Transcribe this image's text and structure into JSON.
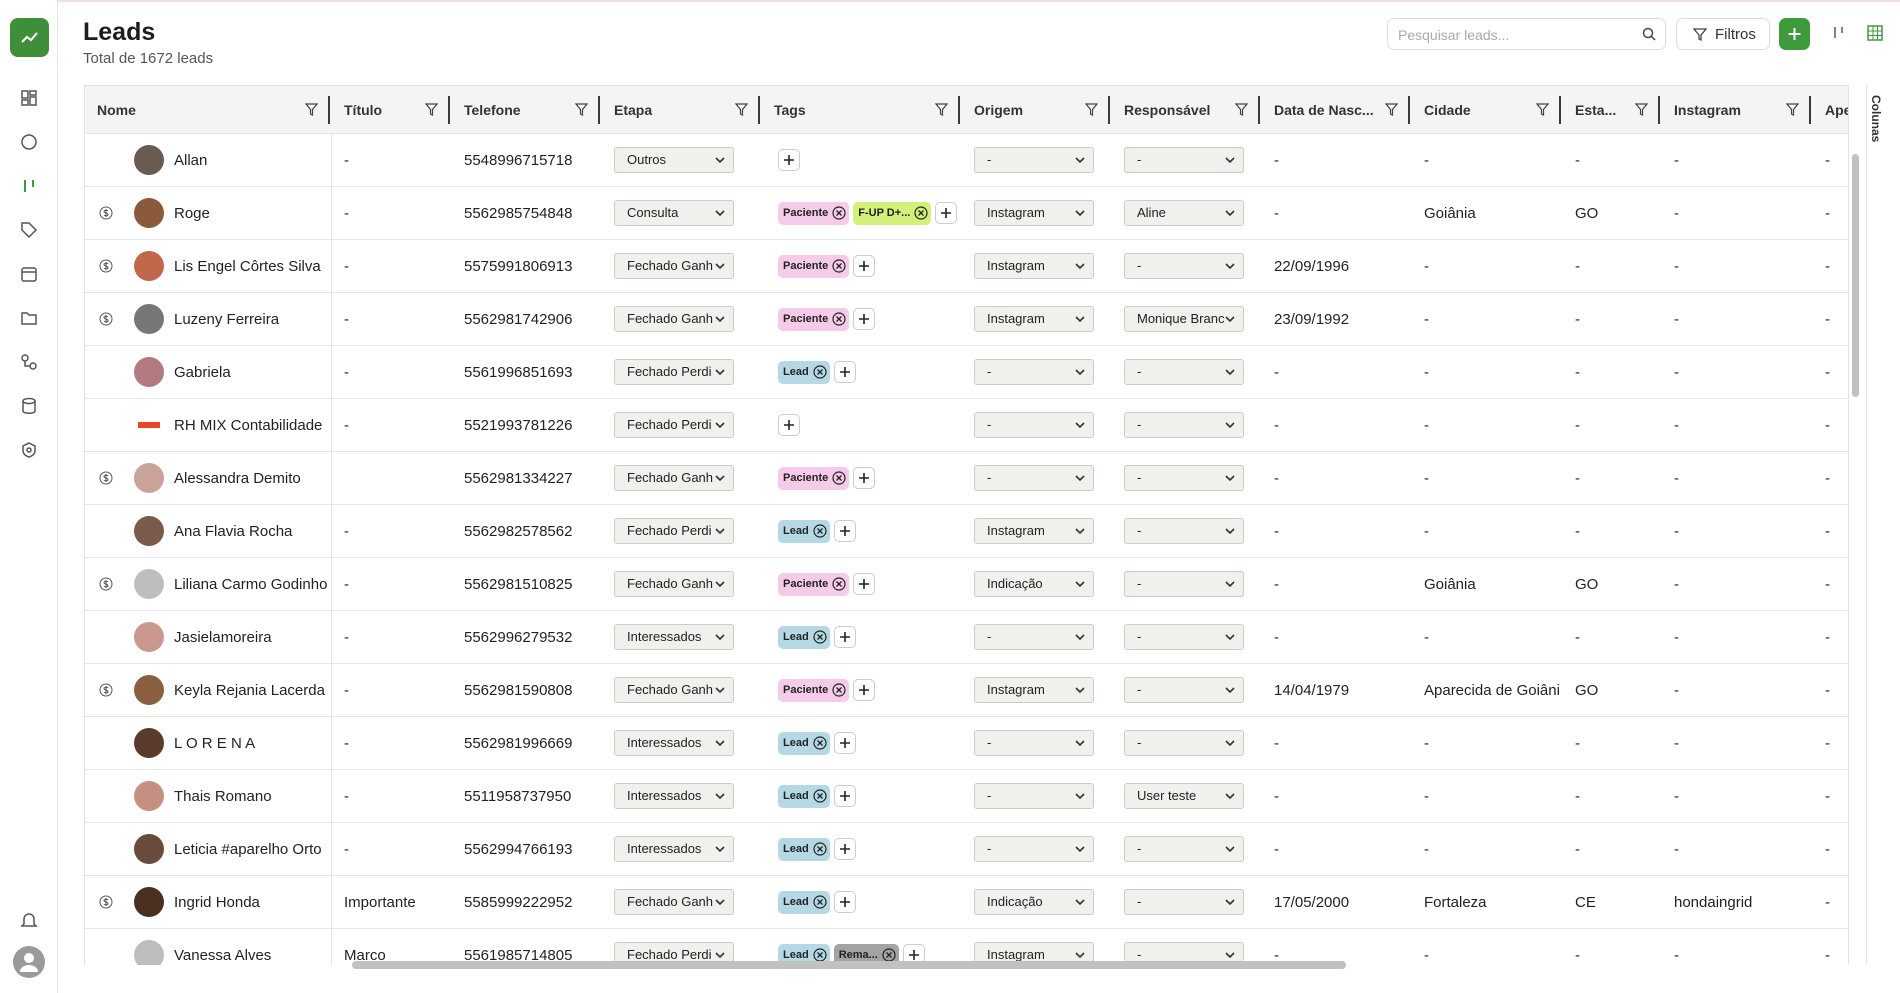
{
  "header": {
    "title": "Leads",
    "subtitle": "Total de 1672 leads",
    "search_placeholder": "Pesquisar leads...",
    "filter_button": "Filtros",
    "columns_panel": "Colunas"
  },
  "table": {
    "columns": [
      "Nome",
      "Título",
      "Telefone",
      "Etapa",
      "Tags",
      "Origem",
      "Responsável",
      "Data de Nasc...",
      "Cidade",
      "Esta...",
      "Instagram",
      "Ape"
    ],
    "rows": [
      {
        "paid": false,
        "name": "Allan",
        "title": "-",
        "phone": "5548996715718",
        "stage": "Outros",
        "tags": [],
        "origin": "-",
        "owner": "-",
        "birth": "-",
        "city": "-",
        "state": "-",
        "instagram": "-",
        "extra": "-"
      },
      {
        "paid": true,
        "name": "Roge",
        "title": "-",
        "phone": "5562985754848",
        "stage": "Consulta",
        "tags": [
          {
            "label": "Paciente",
            "color": "#f6cbe9"
          },
          {
            "label": "F-UP D+...",
            "color": "#d3f07a"
          }
        ],
        "origin": "Instagram",
        "owner": "Aline",
        "birth": "-",
        "city": "Goiânia",
        "state": "GO",
        "instagram": "-",
        "extra": "-"
      },
      {
        "paid": true,
        "name": "Lis Engel Côrtes Silva",
        "title": "-",
        "phone": "5575991806913",
        "stage": "Fechado Ganh",
        "tags": [
          {
            "label": "Paciente",
            "color": "#f6cbe9"
          }
        ],
        "origin": "Instagram",
        "owner": "-",
        "birth": "22/09/1996",
        "city": "-",
        "state": "-",
        "instagram": "-",
        "extra": "-"
      },
      {
        "paid": true,
        "name": "Luzeny Ferreira",
        "title": "-",
        "phone": "5562981742906",
        "stage": "Fechado Ganh",
        "tags": [
          {
            "label": "Paciente",
            "color": "#f6cbe9"
          }
        ],
        "origin": "Instagram",
        "owner": "Monique Branc",
        "birth": "23/09/1992",
        "city": "-",
        "state": "-",
        "instagram": "-",
        "extra": "-"
      },
      {
        "paid": false,
        "name": "Gabriela",
        "title": "-",
        "phone": "5561996851693",
        "stage": "Fechado Perdi",
        "tags": [
          {
            "label": "Lead",
            "color": "#b5d9e4"
          }
        ],
        "origin": "-",
        "owner": "-",
        "birth": "-",
        "city": "-",
        "state": "-",
        "instagram": "-",
        "extra": "-"
      },
      {
        "paid": false,
        "name": "RH MIX Contabilidade",
        "title": "-",
        "phone": "5521993781226",
        "stage": "Fechado Perdi",
        "tags": [],
        "origin": "-",
        "owner": "-",
        "birth": "-",
        "city": "-",
        "state": "-",
        "instagram": "-",
        "extra": "-"
      },
      {
        "paid": true,
        "name": "Alessandra Demito",
        "title": null,
        "phone": "5562981334227",
        "stage": "Fechado Ganh",
        "tags": [
          {
            "label": "Paciente",
            "color": "#f6cbe9"
          }
        ],
        "origin": "-",
        "owner": "-",
        "birth": "-",
        "city": "-",
        "state": "-",
        "instagram": "-",
        "extra": "-"
      },
      {
        "paid": false,
        "name": "Ana Flavia Rocha",
        "title": "-",
        "phone": "5562982578562",
        "stage": "Fechado Perdi",
        "tags": [
          {
            "label": "Lead",
            "color": "#b5d9e4"
          }
        ],
        "origin": "Instagram",
        "owner": "-",
        "birth": "-",
        "city": "-",
        "state": "-",
        "instagram": "-",
        "extra": "-"
      },
      {
        "paid": true,
        "name": "Liliana Carmo Godinho",
        "title": "-",
        "phone": "5562981510825",
        "stage": "Fechado Ganh",
        "tags": [
          {
            "label": "Paciente",
            "color": "#f6cbe9"
          }
        ],
        "origin": "Indicação",
        "owner": "-",
        "birth": "-",
        "city": "Goiânia",
        "state": "GO",
        "instagram": "-",
        "extra": "-"
      },
      {
        "paid": false,
        "name": "Jasielamoreira",
        "title": "-",
        "phone": "5562996279532",
        "stage": "Interessados",
        "tags": [
          {
            "label": "Lead",
            "color": "#b5d9e4"
          }
        ],
        "origin": "-",
        "owner": "-",
        "birth": "-",
        "city": "-",
        "state": "-",
        "instagram": "-",
        "extra": "-"
      },
      {
        "paid": true,
        "name": "Keyla Rejania Lacerda",
        "title": "-",
        "phone": "5562981590808",
        "stage": "Fechado Ganh",
        "tags": [
          {
            "label": "Paciente",
            "color": "#f6cbe9"
          }
        ],
        "origin": "Instagram",
        "owner": "-",
        "birth": "14/04/1979",
        "city": "Aparecida de Goiâni",
        "state": "GO",
        "instagram": "-",
        "extra": "-"
      },
      {
        "paid": false,
        "name": "L O R E N A",
        "title": "-",
        "phone": "5562981996669",
        "stage": "Interessados",
        "tags": [
          {
            "label": "Lead",
            "color": "#b5d9e4"
          }
        ],
        "origin": "-",
        "owner": "-",
        "birth": "-",
        "city": "-",
        "state": "-",
        "instagram": "-",
        "extra": "-"
      },
      {
        "paid": false,
        "name": "Thais Romano",
        "title": "-",
        "phone": "5511958737950",
        "stage": "Interessados",
        "tags": [
          {
            "label": "Lead",
            "color": "#b5d9e4"
          }
        ],
        "origin": "-",
        "owner": "User teste",
        "birth": "-",
        "city": "-",
        "state": "-",
        "instagram": "-",
        "extra": "-"
      },
      {
        "paid": false,
        "name": "Leticia #aparelho Orto",
        "title": "-",
        "phone": "5562994766193",
        "stage": "Interessados",
        "tags": [
          {
            "label": "Lead",
            "color": "#b5d9e4"
          }
        ],
        "origin": "-",
        "owner": "-",
        "birth": "-",
        "city": "-",
        "state": "-",
        "instagram": "-",
        "extra": "-"
      },
      {
        "paid": true,
        "name": "Ingrid Honda",
        "title": "Importante",
        "phone": "5585999222952",
        "stage": "Fechado Ganh",
        "tags": [
          {
            "label": "Lead",
            "color": "#b5d9e4"
          }
        ],
        "origin": "Indicação",
        "owner": "-",
        "birth": "17/05/2000",
        "city": "Fortaleza",
        "state": "CE",
        "instagram": "hondaingrid",
        "extra": "-"
      },
      {
        "paid": false,
        "name": "Vanessa Alves",
        "title": "Marco",
        "phone": "5561985714805",
        "stage": "Fechado Perdi",
        "tags": [
          {
            "label": "Lead",
            "color": "#b5d9e4"
          },
          {
            "label": "Rema...",
            "color": "#a3a3a3"
          }
        ],
        "origin": "Instagram",
        "owner": "-",
        "birth": "-",
        "city": "-",
        "state": "-",
        "instagram": "-",
        "extra": "-"
      }
    ]
  }
}
